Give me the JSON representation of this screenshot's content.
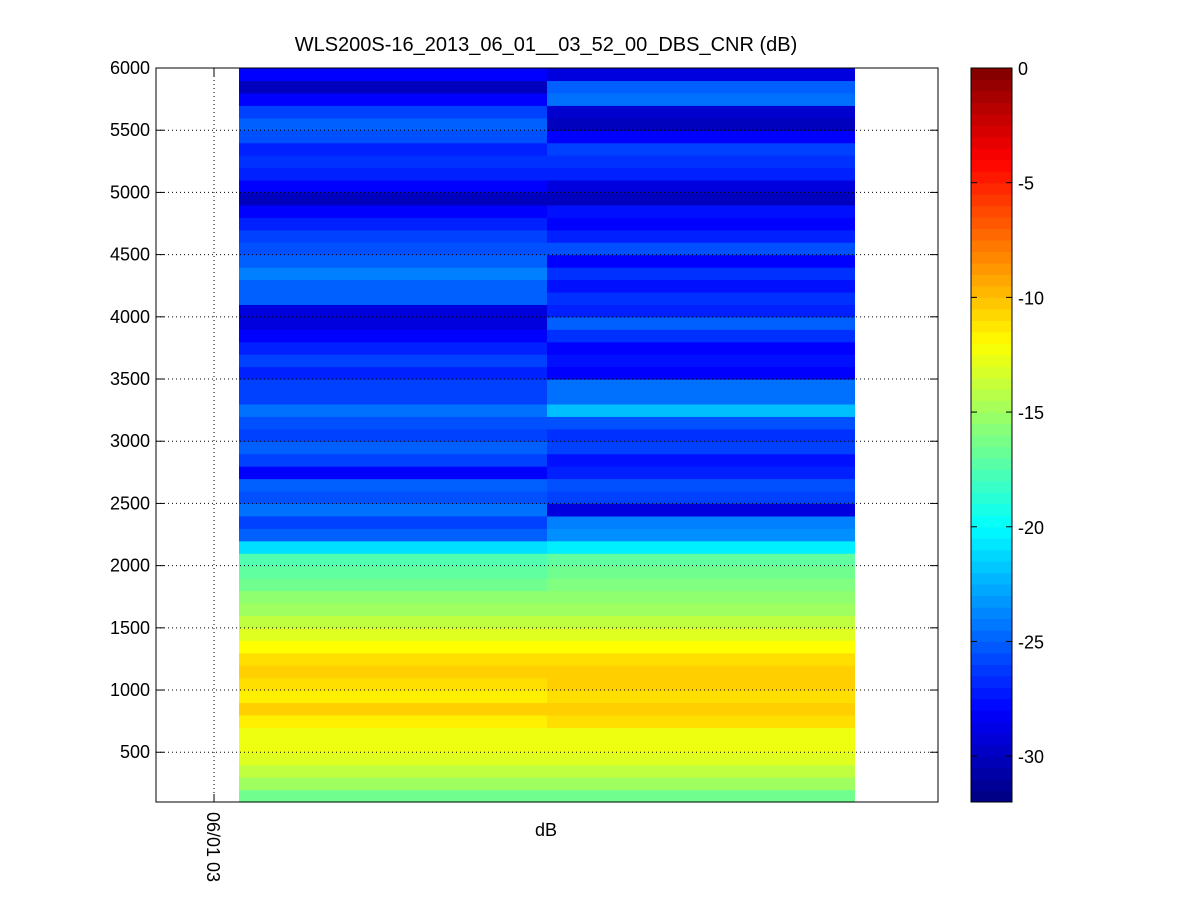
{
  "chart_data": {
    "type": "heatmap",
    "title": "WLS200S-16_2013_06_01__03_52_00_DBS_CNR (dB)",
    "xlabel": "dB",
    "ylabel": "",
    "x_ticks": [
      "06/01 03"
    ],
    "ylim": [
      100,
      6000
    ],
    "y_ticks": [
      500,
      1000,
      1500,
      2000,
      2500,
      3000,
      3500,
      4000,
      4500,
      5000,
      5500,
      6000
    ],
    "grid": true,
    "colormap": "jet",
    "colorbar": {
      "range": [
        -32,
        0
      ],
      "ticks": [
        0,
        -5,
        -10,
        -15,
        -20,
        -25,
        -30
      ],
      "placement": "right"
    },
    "columns": 2,
    "altitudes": [
      100,
      200,
      300,
      400,
      500,
      600,
      700,
      800,
      900,
      1000,
      1100,
      1200,
      1300,
      1400,
      1500,
      1600,
      1700,
      1800,
      1900,
      2000,
      2100,
      2200,
      2300,
      2400,
      2500,
      2600,
      2700,
      2800,
      2900,
      3000,
      3100,
      3200,
      3300,
      3400,
      3500,
      3600,
      3700,
      3800,
      3900,
      4000,
      4100,
      4200,
      4300,
      4400,
      4500,
      4600,
      4700,
      4800,
      4900,
      5000,
      5100,
      5200,
      5300,
      5400,
      5500,
      5600,
      5700,
      5800,
      5900
    ],
    "values": [
      [
        -16.5,
        -15,
        -14,
        -13,
        -12.5,
        -12.5,
        -11.5,
        -10.5,
        -11.5,
        -11,
        -10.5,
        -11,
        -12,
        -13,
        -14,
        -15,
        -15.5,
        -16.5,
        -17,
        -17.5,
        -21,
        -25,
        -26,
        -24.5,
        -25.5,
        -25,
        -28,
        -26,
        -25,
        -26,
        -25.5,
        -24.5,
        -26,
        -26,
        -27,
        -26,
        -27,
        -28,
        -29,
        -29,
        -25,
        -25,
        -24,
        -25,
        -25.5,
        -26,
        -27,
        -28,
        -30,
        -28,
        -27,
        -26.5,
        -27,
        -25.5,
        -25,
        -26,
        -28,
        -30,
        -28
      ],
      [
        -16.5,
        -15,
        -14,
        -13,
        -12.5,
        -12.5,
        -11,
        -10.5,
        -11,
        -10.5,
        -10.5,
        -11,
        -12,
        -13,
        -14,
        -15,
        -15.5,
        -16,
        -16.5,
        -17,
        -20.5,
        -23.5,
        -24,
        -29,
        -26,
        -25.5,
        -27,
        -27.5,
        -26,
        -26.5,
        -25.5,
        -22,
        -24.5,
        -24.5,
        -28,
        -27.5,
        -28,
        -26.5,
        -25,
        -27,
        -26.5,
        -27.5,
        -26.5,
        -28,
        -25.5,
        -27,
        -28,
        -27.5,
        -30,
        -29,
        -27,
        -26.5,
        -26,
        -28,
        -30,
        -29.5,
        -24.5,
        -25,
        -29
      ]
    ]
  }
}
